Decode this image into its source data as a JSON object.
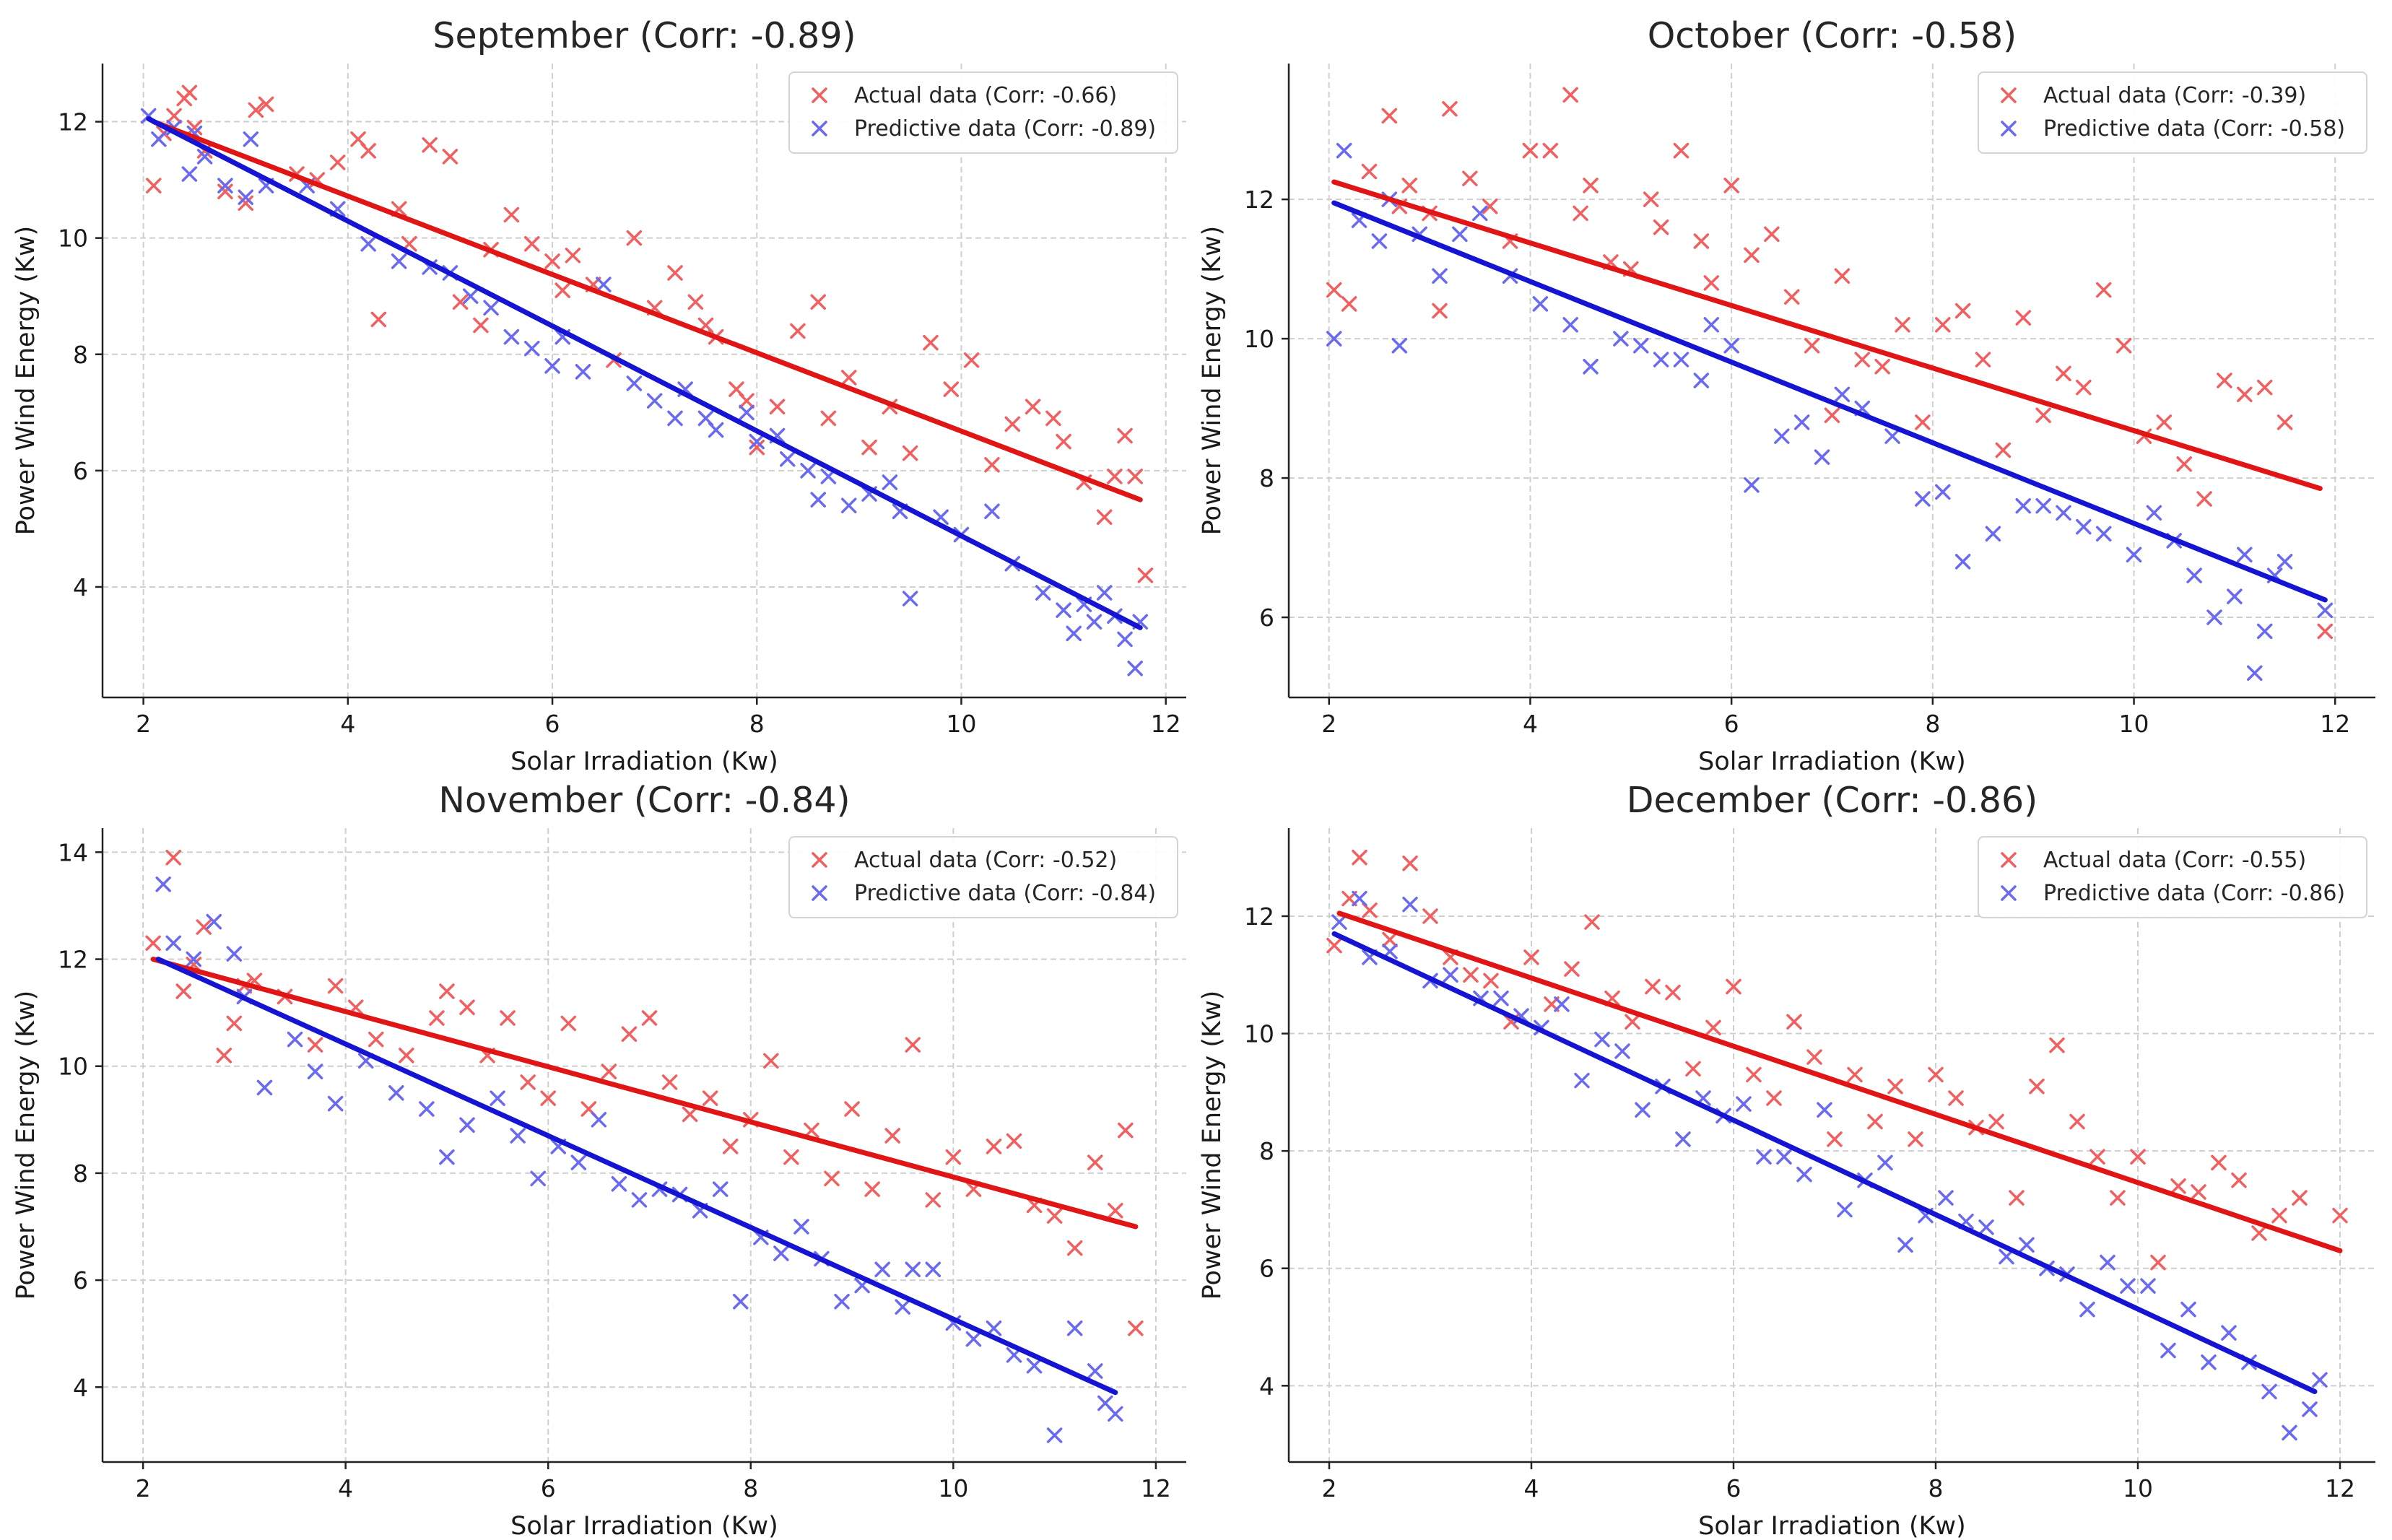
{
  "colors": {
    "actual": "#f06060",
    "predictive": "#6a6af0",
    "actual_line": "#e01616",
    "predictive_line": "#1414d2"
  },
  "chart_data": [
    {
      "type": "scatter",
      "title": "September (Corr: -0.89)",
      "xlabel": "Solar Irradiation (Kw)",
      "ylabel": "Power Wind Energy (Kw)",
      "xlim": [
        1.6,
        12.2
      ],
      "ylim": [
        2.1,
        13.0
      ],
      "xticks": [
        2,
        4,
        6,
        8,
        10,
        12
      ],
      "yticks": [
        4,
        6,
        8,
        10,
        12
      ],
      "grid": true,
      "legend_position": "top-right",
      "series": [
        {
          "name": "Actual data (Corr: -0.66)",
          "x": [
            2.1,
            2.2,
            2.3,
            2.4,
            2.45,
            2.5,
            2.6,
            2.8,
            3.0,
            3.1,
            3.2,
            3.5,
            3.7,
            3.9,
            4.1,
            4.2,
            4.3,
            4.5,
            4.6,
            4.8,
            5.0,
            5.1,
            5.3,
            5.4,
            5.6,
            5.8,
            6.0,
            6.1,
            6.2,
            6.4,
            6.6,
            6.8,
            7.0,
            7.2,
            7.4,
            7.5,
            7.6,
            7.8,
            7.9,
            8.0,
            8.2,
            8.4,
            8.6,
            8.7,
            8.9,
            9.1,
            9.3,
            9.5,
            9.7,
            9.9,
            10.1,
            10.3,
            10.5,
            10.7,
            10.9,
            11.0,
            11.2,
            11.4,
            11.5,
            11.6,
            11.7,
            11.8
          ],
          "y": [
            10.9,
            11.8,
            12.1,
            12.4,
            12.5,
            11.9,
            11.5,
            10.8,
            10.6,
            12.2,
            12.3,
            11.1,
            11.0,
            11.3,
            11.7,
            11.5,
            8.6,
            10.5,
            9.9,
            11.6,
            11.4,
            8.9,
            8.5,
            9.8,
            10.4,
            9.9,
            9.6,
            9.1,
            9.7,
            9.2,
            7.9,
            10.0,
            8.8,
            9.4,
            8.9,
            8.5,
            8.3,
            7.4,
            7.2,
            6.4,
            7.1,
            8.4,
            8.9,
            6.9,
            7.6,
            6.4,
            7.1,
            6.3,
            8.2,
            7.4,
            7.9,
            6.1,
            6.8,
            7.1,
            6.9,
            6.5,
            5.8,
            5.2,
            5.9,
            6.6,
            5.9,
            4.2
          ],
          "trend": [
            [
              2.1,
              12.0
            ],
            [
              11.75,
              5.5
            ]
          ]
        },
        {
          "name": "Predictive data (Corr: -0.89)",
          "x": [
            2.05,
            2.15,
            2.3,
            2.45,
            2.5,
            2.6,
            2.8,
            3.0,
            3.05,
            3.2,
            3.6,
            3.9,
            4.2,
            4.5,
            4.8,
            5.0,
            5.2,
            5.4,
            5.6,
            5.8,
            6.0,
            6.1,
            6.3,
            6.5,
            6.8,
            7.0,
            7.2,
            7.3,
            7.5,
            7.6,
            7.9,
            8.0,
            8.2,
            8.3,
            8.5,
            8.6,
            8.7,
            8.9,
            9.1,
            9.3,
            9.4,
            9.5,
            9.8,
            10.0,
            10.3,
            10.5,
            10.8,
            11.0,
            11.1,
            11.2,
            11.3,
            11.4,
            11.5,
            11.6,
            11.7,
            11.75
          ],
          "y": [
            12.1,
            11.7,
            11.9,
            11.1,
            11.8,
            11.4,
            10.9,
            10.7,
            11.7,
            10.9,
            10.9,
            10.5,
            9.9,
            9.6,
            9.5,
            9.4,
            9.0,
            8.8,
            8.3,
            8.1,
            7.8,
            8.3,
            7.7,
            9.2,
            7.5,
            7.2,
            6.9,
            7.4,
            6.9,
            6.7,
            7.0,
            6.5,
            6.6,
            6.2,
            6.0,
            5.5,
            5.9,
            5.4,
            5.6,
            5.8,
            5.3,
            3.8,
            5.2,
            4.9,
            5.3,
            4.4,
            3.9,
            3.6,
            3.2,
            3.7,
            3.4,
            3.9,
            3.5,
            3.1,
            2.6,
            3.4
          ],
          "trend": [
            [
              2.05,
              12.05
            ],
            [
              11.75,
              3.3
            ]
          ]
        }
      ]
    },
    {
      "type": "scatter",
      "title": "October (Corr: -0.58)",
      "xlabel": "Solar Irradiation (Kw)",
      "ylabel": "Power Wind Energy (Kw)",
      "xlim": [
        1.6,
        12.4
      ],
      "ylim": [
        4.85,
        13.95
      ],
      "xticks": [
        2,
        4,
        6,
        8,
        10,
        12
      ],
      "yticks": [
        6,
        8,
        10,
        12
      ],
      "grid": true,
      "legend_position": "top-right",
      "series": [
        {
          "name": "Actual data (Corr: -0.39)",
          "x": [
            2.05,
            2.2,
            2.4,
            2.6,
            2.7,
            2.8,
            3.0,
            3.1,
            3.2,
            3.4,
            3.6,
            3.8,
            4.0,
            4.2,
            4.4,
            4.5,
            4.6,
            4.8,
            5.0,
            5.2,
            5.3,
            5.5,
            5.7,
            5.8,
            6.0,
            6.2,
            6.4,
            6.6,
            6.8,
            7.0,
            7.1,
            7.3,
            7.5,
            7.7,
            7.9,
            8.1,
            8.3,
            8.5,
            8.7,
            8.9,
            9.1,
            9.3,
            9.5,
            9.7,
            9.9,
            10.1,
            10.3,
            10.5,
            10.7,
            10.9,
            11.1,
            11.3,
            11.5,
            11.9
          ],
          "y": [
            10.7,
            10.5,
            12.4,
            13.2,
            11.9,
            12.2,
            11.8,
            10.4,
            13.3,
            12.3,
            11.9,
            11.4,
            12.7,
            12.7,
            13.5,
            11.8,
            12.2,
            11.1,
            11.0,
            12.0,
            11.6,
            12.7,
            11.4,
            10.8,
            12.2,
            11.2,
            11.5,
            10.6,
            9.9,
            8.9,
            10.9,
            9.7,
            9.6,
            10.2,
            8.8,
            10.2,
            10.4,
            9.7,
            8.4,
            10.3,
            8.9,
            9.5,
            9.3,
            10.7,
            9.9,
            8.6,
            8.8,
            8.2,
            7.7,
            9.4,
            9.2,
            9.3,
            8.8,
            5.8
          ],
          "trend": [
            [
              2.05,
              12.25
            ],
            [
              11.85,
              7.85
            ]
          ]
        },
        {
          "name": "Predictive data (Corr: -0.58)",
          "x": [
            2.05,
            2.15,
            2.3,
            2.5,
            2.6,
            2.7,
            2.9,
            3.1,
            3.3,
            3.5,
            3.8,
            4.1,
            4.4,
            4.6,
            4.9,
            5.1,
            5.3,
            5.5,
            5.7,
            5.8,
            6.0,
            6.2,
            6.5,
            6.7,
            6.9,
            7.1,
            7.3,
            7.6,
            7.9,
            8.1,
            8.3,
            8.6,
            8.9,
            9.1,
            9.3,
            9.5,
            9.7,
            10.0,
            10.2,
            10.4,
            10.6,
            10.8,
            11.0,
            11.1,
            11.2,
            11.3,
            11.4,
            11.5,
            11.9
          ],
          "y": [
            10.0,
            12.7,
            11.7,
            11.4,
            12.0,
            9.9,
            11.5,
            10.9,
            11.5,
            11.8,
            10.9,
            10.5,
            10.2,
            9.6,
            10.0,
            9.9,
            9.7,
            9.7,
            9.4,
            10.2,
            9.9,
            7.9,
            8.6,
            8.8,
            8.3,
            9.2,
            9.0,
            8.6,
            7.7,
            7.8,
            6.8,
            7.2,
            7.6,
            7.6,
            7.5,
            7.3,
            7.2,
            6.9,
            7.5,
            7.1,
            6.6,
            6.0,
            6.3,
            6.9,
            5.2,
            5.8,
            6.6,
            6.8,
            6.1
          ],
          "trend": [
            [
              2.05,
              11.95
            ],
            [
              11.9,
              6.25
            ]
          ]
        }
      ]
    },
    {
      "type": "scatter",
      "title": "November (Corr: -0.84)",
      "xlabel": "Solar Irradiation (Kw)",
      "ylabel": "Power Wind Energy (Kw)",
      "xlim": [
        1.6,
        12.3
      ],
      "ylim": [
        2.6,
        14.45
      ],
      "xticks": [
        2,
        4,
        6,
        8,
        10,
        12
      ],
      "yticks": [
        4,
        6,
        8,
        10,
        12,
        14
      ],
      "grid": true,
      "legend_position": "top-right",
      "series": [
        {
          "name": "Actual data (Corr: -0.52)",
          "x": [
            2.1,
            2.3,
            2.4,
            2.5,
            2.6,
            2.8,
            2.9,
            3.0,
            3.1,
            3.4,
            3.7,
            3.9,
            4.1,
            4.3,
            4.6,
            4.9,
            5.0,
            5.2,
            5.4,
            5.6,
            5.8,
            6.0,
            6.2,
            6.4,
            6.6,
            6.8,
            7.0,
            7.2,
            7.4,
            7.6,
            7.8,
            8.0,
            8.2,
            8.4,
            8.6,
            8.8,
            9.0,
            9.2,
            9.4,
            9.6,
            9.8,
            10.0,
            10.2,
            10.4,
            10.6,
            10.8,
            11.0,
            11.2,
            11.4,
            11.6,
            11.7,
            11.8
          ],
          "y": [
            12.3,
            13.9,
            11.4,
            11.9,
            12.6,
            10.2,
            10.8,
            11.5,
            11.6,
            11.3,
            10.4,
            11.5,
            11.1,
            10.5,
            10.2,
            10.9,
            11.4,
            11.1,
            10.2,
            10.9,
            9.7,
            9.4,
            10.8,
            9.2,
            9.9,
            10.6,
            10.9,
            9.7,
            9.1,
            9.4,
            8.5,
            9.0,
            10.1,
            8.3,
            8.8,
            7.9,
            9.2,
            7.7,
            8.7,
            10.4,
            7.5,
            8.3,
            7.7,
            8.5,
            8.6,
            7.4,
            7.2,
            6.6,
            8.2,
            7.3,
            8.8,
            5.1
          ],
          "trend": [
            [
              2.1,
              12.0
            ],
            [
              11.8,
              7.0
            ]
          ]
        },
        {
          "name": "Predictive data (Corr: -0.84)",
          "x": [
            2.2,
            2.3,
            2.5,
            2.7,
            2.9,
            3.0,
            3.2,
            3.5,
            3.7,
            3.9,
            4.2,
            4.5,
            4.8,
            5.0,
            5.2,
            5.5,
            5.7,
            5.9,
            6.1,
            6.3,
            6.5,
            6.7,
            6.9,
            7.1,
            7.3,
            7.5,
            7.7,
            7.9,
            8.1,
            8.3,
            8.5,
            8.7,
            8.9,
            9.1,
            9.3,
            9.5,
            9.6,
            9.8,
            10.0,
            10.2,
            10.4,
            10.6,
            10.8,
            11.0,
            11.2,
            11.4,
            11.5,
            11.6
          ],
          "y": [
            13.4,
            12.3,
            12.0,
            12.7,
            12.1,
            11.3,
            9.6,
            10.5,
            9.9,
            9.3,
            10.1,
            9.5,
            9.2,
            8.3,
            8.9,
            9.4,
            8.7,
            7.9,
            8.5,
            8.2,
            9.0,
            7.8,
            7.5,
            7.7,
            7.6,
            7.3,
            7.7,
            5.6,
            6.8,
            6.5,
            7.0,
            6.4,
            5.6,
            5.9,
            6.2,
            5.5,
            6.2,
            6.2,
            5.2,
            4.9,
            5.1,
            4.6,
            4.4,
            3.1,
            5.1,
            4.3,
            3.7,
            3.5
          ],
          "trend": [
            [
              2.15,
              12.0
            ],
            [
              11.6,
              3.9
            ]
          ]
        }
      ]
    },
    {
      "type": "scatter",
      "title": "December (Corr: -0.86)",
      "xlabel": "Solar Irradiation (Kw)",
      "ylabel": "Power Wind Energy (Kw)",
      "xlim": [
        1.6,
        12.35
      ],
      "ylim": [
        2.7,
        13.5
      ],
      "xticks": [
        2,
        4,
        6,
        8,
        10,
        12
      ],
      "yticks": [
        4,
        6,
        8,
        10,
        12
      ],
      "grid": true,
      "legend_position": "top-right",
      "series": [
        {
          "name": "Actual data (Corr: -0.55)",
          "x": [
            2.05,
            2.2,
            2.3,
            2.4,
            2.6,
            2.8,
            3.0,
            3.2,
            3.4,
            3.6,
            3.8,
            4.0,
            4.2,
            4.4,
            4.6,
            4.8,
            5.0,
            5.2,
            5.4,
            5.6,
            5.8,
            6.0,
            6.2,
            6.4,
            6.6,
            6.8,
            7.0,
            7.2,
            7.4,
            7.6,
            7.8,
            8.0,
            8.2,
            8.4,
            8.6,
            8.8,
            9.0,
            9.2,
            9.4,
            9.6,
            9.8,
            10.0,
            10.2,
            10.4,
            10.6,
            10.8,
            11.0,
            11.2,
            11.4,
            11.6,
            12.0
          ],
          "y": [
            11.5,
            12.3,
            13.0,
            12.1,
            11.6,
            12.9,
            12.0,
            11.3,
            11.0,
            10.9,
            10.2,
            11.3,
            10.5,
            11.1,
            11.9,
            10.6,
            10.2,
            10.8,
            10.7,
            9.4,
            10.1,
            10.8,
            9.3,
            8.9,
            10.2,
            9.6,
            8.2,
            9.3,
            8.5,
            9.1,
            8.2,
            9.3,
            8.9,
            8.4,
            8.5,
            7.2,
            9.1,
            9.8,
            8.5,
            7.9,
            7.2,
            7.9,
            6.1,
            7.4,
            7.3,
            7.8,
            7.5,
            6.6,
            6.9,
            7.2,
            6.9
          ],
          "trend": [
            [
              2.1,
              12.05
            ],
            [
              12.0,
              6.3
            ]
          ]
        },
        {
          "name": "Predictive data (Corr: -0.86)",
          "x": [
            2.1,
            2.3,
            2.4,
            2.6,
            2.8,
            3.0,
            3.2,
            3.5,
            3.7,
            3.9,
            4.1,
            4.3,
            4.5,
            4.7,
            4.9,
            5.1,
            5.3,
            5.5,
            5.7,
            5.9,
            6.1,
            6.3,
            6.5,
            6.7,
            6.9,
            7.1,
            7.3,
            7.5,
            7.7,
            7.9,
            8.1,
            8.3,
            8.5,
            8.7,
            8.9,
            9.1,
            9.3,
            9.5,
            9.7,
            9.9,
            10.1,
            10.3,
            10.5,
            10.7,
            10.9,
            11.1,
            11.3,
            11.5,
            11.7,
            11.8
          ],
          "y": [
            11.9,
            12.3,
            11.3,
            11.4,
            12.2,
            10.9,
            11.0,
            10.6,
            10.6,
            10.3,
            10.1,
            10.5,
            9.2,
            9.9,
            9.7,
            8.7,
            9.1,
            8.2,
            8.9,
            8.6,
            8.8,
            7.9,
            7.9,
            7.6,
            8.7,
            7.0,
            7.5,
            7.8,
            6.4,
            6.9,
            7.2,
            6.8,
            6.7,
            6.2,
            6.4,
            6.0,
            5.9,
            5.3,
            6.1,
            5.7,
            5.7,
            4.6,
            5.3,
            4.4,
            4.9,
            4.4,
            3.9,
            3.2,
            3.6,
            4.1
          ],
          "trend": [
            [
              2.05,
              11.7
            ],
            [
              11.75,
              3.9
            ]
          ]
        }
      ]
    }
  ]
}
